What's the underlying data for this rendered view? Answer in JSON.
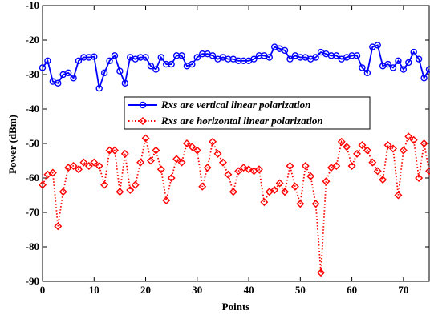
{
  "chart_data": {
    "type": "line",
    "title": "",
    "xlabel": "Points",
    "ylabel": "Power (dBm)",
    "xlim": [
      0,
      75
    ],
    "ylim": [
      -90,
      -10
    ],
    "xticks": [
      0,
      10,
      20,
      30,
      40,
      50,
      60,
      70
    ],
    "yticks": [
      -90,
      -80,
      -70,
      -60,
      -50,
      -40,
      -30,
      -20,
      -10
    ],
    "grid": false,
    "legend_position": "center",
    "series": [
      {
        "name": "Rxs are vertical linear polarization",
        "color": "#0000ff",
        "line_style": "solid",
        "marker": "circle",
        "x": [
          0,
          1,
          2,
          3,
          4,
          5,
          6,
          7,
          8,
          9,
          10,
          11,
          12,
          13,
          14,
          15,
          16,
          17,
          18,
          19,
          20,
          21,
          22,
          23,
          24,
          25,
          26,
          27,
          28,
          29,
          30,
          31,
          32,
          33,
          34,
          35,
          36,
          37,
          38,
          39,
          40,
          41,
          42,
          43,
          44,
          45,
          46,
          47,
          48,
          49,
          50,
          51,
          52,
          53,
          54,
          55,
          56,
          57,
          58,
          59,
          60,
          61,
          62,
          63,
          64,
          65,
          66,
          67,
          68,
          69,
          70,
          71,
          72,
          73,
          74,
          75
        ],
        "y": [
          -28,
          -26,
          -32,
          -32.5,
          -30,
          -29.5,
          -31,
          -26,
          -25,
          -25,
          -24.8,
          -34,
          -29.5,
          -26,
          -24.5,
          -29,
          -32.5,
          -25,
          -25.5,
          -25,
          -25,
          -27.5,
          -28.5,
          -25,
          -27,
          -27,
          -24.5,
          -24.5,
          -27.5,
          -27,
          -25,
          -24,
          -24,
          -24.5,
          -25.5,
          -25,
          -25.5,
          -25.5,
          -26,
          -26,
          -26,
          -25.5,
          -24.5,
          -24.5,
          -25,
          -22,
          -22.5,
          -23,
          -25.5,
          -24.5,
          -25,
          -25,
          -25.5,
          -25,
          -23.5,
          -24,
          -24.5,
          -24.5,
          -25.5,
          -25,
          -24.5,
          -24.5,
          -28,
          -29.5,
          -22,
          -21.5,
          -27.5,
          -27,
          -28,
          -26,
          -28.5,
          -26.5,
          -23.5,
          -25.5,
          -31,
          -28.5
        ]
      },
      {
        "name": "Rxs are horizontal linear polarization",
        "color": "#ff0000",
        "line_style": "dotted",
        "marker": "diamond",
        "x": [
          0,
          1,
          2,
          3,
          4,
          5,
          6,
          7,
          8,
          9,
          10,
          11,
          12,
          13,
          14,
          15,
          16,
          17,
          18,
          19,
          20,
          21,
          22,
          23,
          24,
          25,
          26,
          27,
          28,
          29,
          30,
          31,
          32,
          33,
          34,
          35,
          36,
          37,
          38,
          39,
          40,
          41,
          42,
          43,
          44,
          45,
          46,
          47,
          48,
          49,
          50,
          51,
          52,
          53,
          54,
          55,
          56,
          57,
          58,
          59,
          60,
          61,
          62,
          63,
          64,
          65,
          66,
          67,
          68,
          69,
          70,
          71,
          72,
          73,
          74,
          75
        ],
        "y": [
          -62,
          -59,
          -58.5,
          -74,
          -64,
          -57,
          -56.5,
          -57.5,
          -55.5,
          -56.5,
          -55.5,
          -56.5,
          -62,
          -52,
          -52,
          -64,
          -53,
          -63.5,
          -62,
          -55.5,
          -48.5,
          -55,
          -52,
          -57.5,
          -66.5,
          -60,
          -54.5,
          -55.5,
          -50,
          -51,
          -52,
          -62.5,
          -57,
          -49.5,
          -53,
          -55.5,
          -59,
          -64,
          -58,
          -57,
          -57.5,
          -58,
          -57.5,
          -67,
          -64,
          -63.5,
          -61.5,
          -64,
          -56.5,
          -62.5,
          -67.5,
          -56.5,
          -59.5,
          -67.5,
          -87.5,
          -61,
          -57,
          -56.5,
          -49.5,
          -51,
          -56.5,
          -53,
          -50.5,
          -52,
          -55.5,
          -58,
          -60.5,
          -50.5,
          -51.5,
          -65,
          -52,
          -48,
          -49,
          -60,
          -50,
          -58
        ]
      }
    ]
  }
}
